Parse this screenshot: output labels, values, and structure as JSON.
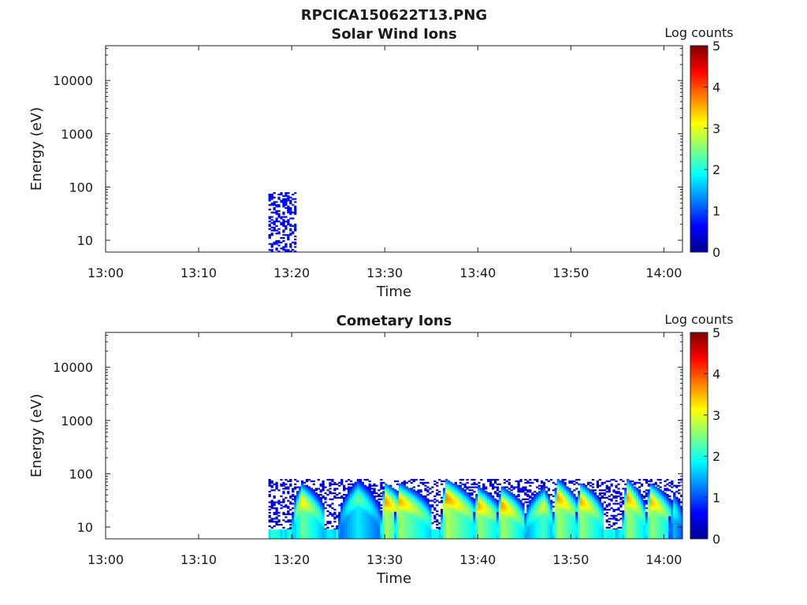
{
  "figure": {
    "title": "RPCICA150622T13.PNG"
  },
  "chart_data": [
    {
      "type": "heatmap",
      "title": "Solar Wind Ions",
      "xlabel": "Time",
      "ylabel": "Energy (eV)",
      "x_range": [
        "13:00",
        "14:02"
      ],
      "x_ticks": [
        "13:00",
        "13:10",
        "13:20",
        "13:30",
        "13:40",
        "13:50",
        "14:00"
      ],
      "y_scale": "log",
      "y_range": [
        6,
        45000
      ],
      "y_ticks": [
        "10",
        "100",
        "1000",
        "10000"
      ],
      "colorbar": {
        "label": "Log counts",
        "range": [
          0,
          5
        ],
        "ticks": [
          "0",
          "1",
          "2",
          "3",
          "4",
          "5"
        ]
      },
      "colormap": "jet",
      "regions": [
        {
          "t_start": "13:17:30",
          "t_end": "13:20:30",
          "e_min": 6,
          "e_max": 80,
          "log_counts": 0.4,
          "density": 0.45
        }
      ]
    },
    {
      "type": "heatmap",
      "title": "Cometary Ions",
      "xlabel": "Time",
      "ylabel": "Energy (eV)",
      "x_range": [
        "13:00",
        "14:02"
      ],
      "x_ticks": [
        "13:00",
        "13:10",
        "13:20",
        "13:30",
        "13:40",
        "13:50",
        "14:00"
      ],
      "y_scale": "log",
      "y_range": [
        6,
        45000
      ],
      "y_ticks": [
        "10",
        "100",
        "1000",
        "10000"
      ],
      "colorbar": {
        "label": "Log counts",
        "range": [
          0,
          5
        ],
        "ticks": [
          "0",
          "1",
          "2",
          "3",
          "4",
          "5"
        ]
      },
      "colormap": "jet",
      "background": {
        "t_start": "13:17:30",
        "t_end": "14:02",
        "e_min": 6,
        "e_max": 80,
        "log_counts": 0.3,
        "density": 0.35
      },
      "floor_band": {
        "t_start": "13:17:30",
        "t_end": "14:02",
        "e_min": 6,
        "e_max": 9,
        "log_counts": 1.6
      },
      "arcs": [
        {
          "t_start": "13:20:00",
          "t_peak": "13:21:00",
          "t_end": "13:23:30",
          "e_peak": 30,
          "max_log_counts": 3.2
        },
        {
          "t_start": "13:25:00",
          "t_peak": "13:27:00",
          "t_end": "13:29:30",
          "e_peak": 35,
          "max_log_counts": 2.4
        },
        {
          "t_start": "13:29:30",
          "t_peak": "13:30:00",
          "t_end": "13:32:30",
          "e_peak": 30,
          "max_log_counts": 3.6
        },
        {
          "t_start": "13:31:00",
          "t_peak": "13:31:30",
          "t_end": "13:35:00",
          "e_peak": 30,
          "max_log_counts": 3.5
        },
        {
          "t_start": "13:36:00",
          "t_peak": "13:36:30",
          "t_end": "13:40:00",
          "e_peak": 35,
          "max_log_counts": 3.7
        },
        {
          "t_start": "13:39:30",
          "t_peak": "13:40:00",
          "t_end": "13:42:30",
          "e_peak": 25,
          "max_log_counts": 3.5
        },
        {
          "t_start": "13:42:00",
          "t_peak": "13:42:30",
          "t_end": "13:45:00",
          "e_peak": 25,
          "max_log_counts": 3.6
        },
        {
          "t_start": "13:45:00",
          "t_peak": "13:47:00",
          "t_end": "13:48:00",
          "e_peak": 25,
          "max_log_counts": 3.0
        },
        {
          "t_start": "13:48:00",
          "t_peak": "13:48:30",
          "t_end": "13:51:00",
          "e_peak": 35,
          "max_log_counts": 3.6
        },
        {
          "t_start": "13:50:30",
          "t_peak": "13:51:00",
          "t_end": "13:53:30",
          "e_peak": 30,
          "max_log_counts": 3.5
        },
        {
          "t_start": "13:55:30",
          "t_peak": "13:56:00",
          "t_end": "13:58:00",
          "e_peak": 35,
          "max_log_counts": 3.6
        },
        {
          "t_start": "13:58:00",
          "t_peak": "13:58:30",
          "t_end": "14:01:00",
          "e_peak": 30,
          "max_log_counts": 3.5
        },
        {
          "t_start": "14:00:30",
          "t_peak": "14:01:00",
          "t_end": "14:02:00",
          "e_peak": 20,
          "max_log_counts": 2.0
        }
      ]
    }
  ]
}
